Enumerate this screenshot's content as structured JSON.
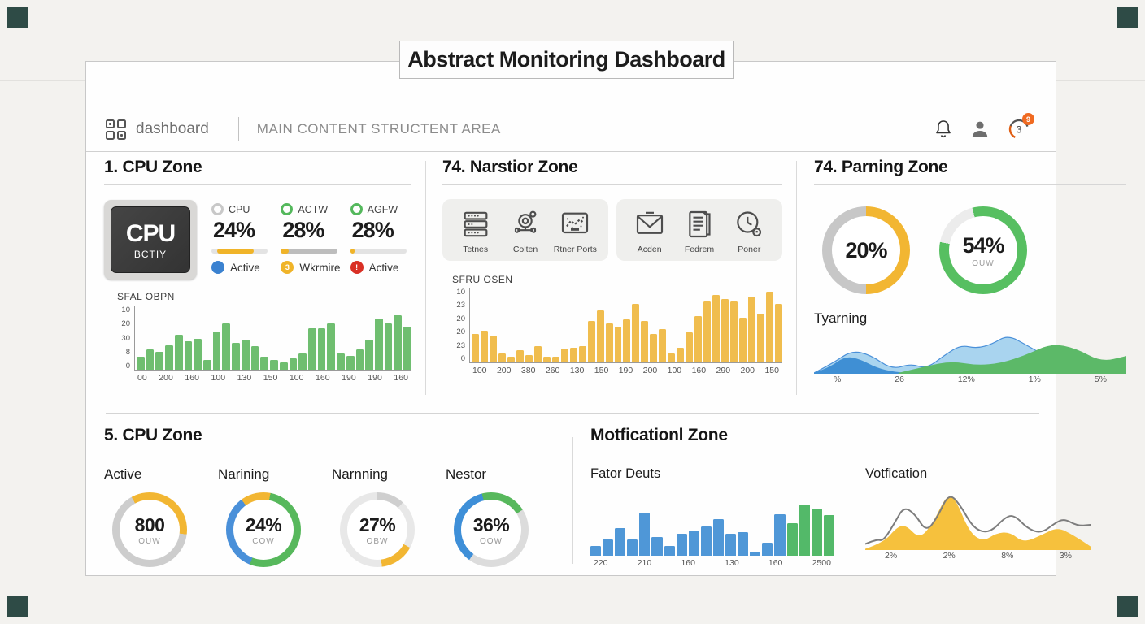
{
  "page": {
    "background": "#f3f2ef",
    "corner_color": "#2e4b46",
    "accent_yellow": "#f0b429",
    "accent_green": "#57b85c",
    "accent_blue": "#4a90d9",
    "accent_red": "#d93025",
    "badge_orange": "#f06a21"
  },
  "title": "Abstract Monitoring Dashboard",
  "header": {
    "brand": "dashboard",
    "subtitle": "MAIN CONTENT STRUCTENT AREA",
    "avatar_value": "3",
    "badge_value": "9"
  },
  "zones": {
    "cpu": {
      "heading": "1. CPU Zone",
      "chip": {
        "line1": "CPU",
        "line2": "BCTIY"
      },
      "stats": [
        {
          "ring_color": "#c8c8c8",
          "label": "CPU",
          "value": "24%",
          "bar": {
            "track": "#e3e3e3",
            "fill": "#f0b429",
            "start": 10,
            "end": 75
          },
          "dot_color": "#3b82d0",
          "dot_glyph": "",
          "status": "Active"
        },
        {
          "ring_color": "#54b85c",
          "label": "ACTW",
          "value": "28%",
          "bar": {
            "track": "#bdbdbd",
            "fill": "#f0b429",
            "start": 0,
            "end": 14
          },
          "dot_color": "#f0b429",
          "dot_glyph": "3",
          "status": "Wkrmire"
        },
        {
          "ring_color": "#54b85c",
          "label": "AGFW",
          "value": "28%",
          "bar": {
            "track": "#e3e3e3",
            "fill": "#f0b429",
            "start": 0,
            "end": 7
          },
          "dot_color": "#d93025",
          "dot_glyph": "!",
          "status": "Active"
        }
      ]
    },
    "narstior": {
      "heading": "74. Narstior Zone",
      "items": [
        {
          "icon": "server-stack-icon",
          "label": "Tetnes"
        },
        {
          "icon": "sensor-gauge-icon",
          "label": "Colten"
        },
        {
          "icon": "monitor-chart-icon",
          "label": "Rtner Ports"
        },
        {
          "icon": "envelope-icon",
          "label": "Acden"
        },
        {
          "icon": "document-icon",
          "label": "Fedrem"
        },
        {
          "icon": "clock-icon",
          "label": "Poner"
        }
      ]
    },
    "parning": {
      "heading": "74. Parning Zone",
      "donuts": [
        {
          "value": "20%",
          "sub": "",
          "segments": [
            [
              "#f2b632",
              0,
              50
            ],
            [
              "#c7c7c7",
              50,
              100
            ]
          ]
        },
        {
          "value": "54%",
          "sub": "OUW",
          "segments": [
            [
              "#57bf61",
              0,
              78
            ],
            [
              "#ececec",
              78,
              96
            ],
            [
              "#57bf61",
              96,
              100
            ]
          ]
        }
      ],
      "caption": "Tyarning"
    },
    "cpu2": {
      "heading": "5. CPU Zone",
      "gauges": [
        {
          "label": "Active",
          "value": "800",
          "sub": "OUW",
          "segments": [
            [
              "#f2b632",
              0,
              27
            ],
            [
              "#cdcdcd",
              27,
              92
            ],
            [
              "#f2b632",
              92,
              100
            ]
          ]
        },
        {
          "label": "Narining",
          "value": "24%",
          "sub": "COW",
          "segments": [
            [
              "#f2b632",
              0,
              3
            ],
            [
              "#57b85c",
              3,
              56
            ],
            [
              "#4a90d9",
              56,
              90
            ],
            [
              "#f2b632",
              90,
              100
            ]
          ]
        },
        {
          "label": "Narnning",
          "value": "27%",
          "sub": "OBW",
          "segments": [
            [
              "#cfcfcf",
              0,
              12
            ],
            [
              "#e8e8e8",
              12,
              33
            ],
            [
              "#f2b632",
              33,
              48
            ],
            [
              "#e8e8e8",
              48,
              100
            ]
          ]
        },
        {
          "label": "Nestor",
          "value": "36%",
          "sub": "OOW",
          "segments": [
            [
              "#57b85c",
              0,
              16
            ],
            [
              "#dcdcdc",
              16,
              60
            ],
            [
              "#3e8fd8",
              60,
              96
            ],
            [
              "#57b85c",
              96,
              100
            ]
          ]
        }
      ]
    },
    "motficationl": {
      "heading": "Motficationl Zone",
      "left_chart_title": "Fator Deuts",
      "right_chart_title": "Votfication"
    }
  },
  "chart_data": {
    "sfal": {
      "type": "bar",
      "title": "SFAL OBPN",
      "color": "#6fbe70",
      "axes": true,
      "ylim": [
        0,
        100
      ],
      "ylabels": [
        "10",
        "20",
        "30",
        "8",
        "0"
      ],
      "xlabels": [
        "00",
        "200",
        "160",
        "100",
        "130",
        "150",
        "100",
        "160",
        "190",
        "190",
        "160"
      ],
      "values": [
        20,
        32,
        28,
        38,
        55,
        44,
        48,
        15,
        60,
        72,
        42,
        47,
        37,
        20,
        15,
        12,
        18,
        25,
        64,
        65,
        72,
        25,
        22,
        32,
        47,
        80,
        72,
        85,
        67
      ]
    },
    "sfru": {
      "type": "bar",
      "title": "SFRU OSEN",
      "color": "#f0bd4e",
      "axes": true,
      "ylim": [
        0,
        100
      ],
      "ylabels": [
        "10",
        "23",
        "20",
        "20",
        "23",
        "0"
      ],
      "xlabels": [
        "100",
        "200",
        "380",
        "260",
        "130",
        "150",
        "190",
        "200",
        "100",
        "160",
        "290",
        "200",
        "150"
      ],
      "values": [
        38,
        42,
        36,
        12,
        8,
        16,
        10,
        22,
        8,
        8,
        18,
        20,
        22,
        55,
        70,
        52,
        48,
        58,
        78,
        55,
        38,
        45,
        12,
        20,
        40,
        62,
        82,
        90,
        85,
        82,
        60,
        88,
        65,
        95,
        78
      ]
    },
    "parning_area": {
      "type": "area",
      "height": 52,
      "xlabels": [
        "%",
        "26",
        "12%",
        "1%",
        "5%"
      ],
      "series": [
        {
          "name": "light-blue",
          "fill": "#a9d4ef",
          "stroke": "#4a90d9",
          "points": [
            [
              0,
              0.02
            ],
            [
              0.06,
              0.25
            ],
            [
              0.12,
              0.55
            ],
            [
              0.18,
              0.45
            ],
            [
              0.25,
              0.1
            ],
            [
              0.31,
              0.24
            ],
            [
              0.36,
              0.12
            ],
            [
              0.42,
              0.45
            ],
            [
              0.47,
              0.68
            ],
            [
              0.52,
              0.6
            ],
            [
              0.57,
              0.7
            ],
            [
              0.62,
              0.92
            ],
            [
              0.68,
              0.68
            ],
            [
              0.75,
              0.38
            ],
            [
              0.85,
              0.26
            ],
            [
              1,
              0.22
            ]
          ]
        },
        {
          "name": "dark-blue",
          "fill": "#3f8fd4",
          "points": [
            [
              0,
              0.02
            ],
            [
              0.05,
              0.15
            ],
            [
              0.1,
              0.42
            ],
            [
              0.15,
              0.34
            ],
            [
              0.2,
              0.14
            ],
            [
              0.26,
              0.04
            ],
            [
              0.32,
              0.02
            ]
          ]
        },
        {
          "name": "green",
          "fill": "#5cb968",
          "points": [
            [
              0.27,
              0.02
            ],
            [
              0.36,
              0.18
            ],
            [
              0.44,
              0.3
            ],
            [
              0.52,
              0.2
            ],
            [
              0.6,
              0.25
            ],
            [
              0.68,
              0.45
            ],
            [
              0.76,
              0.72
            ],
            [
              0.84,
              0.6
            ],
            [
              0.92,
              0.28
            ],
            [
              1,
              0.42
            ]
          ]
        }
      ]
    },
    "fator": {
      "type": "bar",
      "title": "Fator Deuts",
      "color": "#4f97d7",
      "axes": false,
      "ylim": [
        0,
        100
      ],
      "xlabels": [
        "220",
        "210",
        "160",
        "130",
        "160",
        "2500"
      ],
      "values": [
        15,
        25,
        42,
        25,
        65,
        28,
        15,
        33,
        38,
        45,
        55,
        33,
        36,
        6,
        20,
        63,
        50,
        78,
        72,
        62
      ],
      "colors_note": "last four bars green",
      "colors": [
        null,
        null,
        null,
        null,
        null,
        null,
        null,
        null,
        null,
        null,
        null,
        null,
        null,
        null,
        null,
        null,
        "#53b969",
        "#53b969",
        "#53b969",
        "#53b969"
      ]
    },
    "votfication": {
      "type": "area",
      "height": 74,
      "xlabels": [
        "2%",
        "2%",
        "8%",
        "3%"
      ],
      "series": [
        {
          "name": "yellow-area",
          "fill": "#f6c13d",
          "points": [
            [
              0,
              0.02
            ],
            [
              0.08,
              0.12
            ],
            [
              0.14,
              0.38
            ],
            [
              0.18,
              0.42
            ],
            [
              0.24,
              0.18
            ],
            [
              0.3,
              0.45
            ],
            [
              0.36,
              0.92
            ],
            [
              0.4,
              0.85
            ],
            [
              0.46,
              0.3
            ],
            [
              0.52,
              0.14
            ],
            [
              0.58,
              0.28
            ],
            [
              0.64,
              0.3
            ],
            [
              0.7,
              0.12
            ],
            [
              0.78,
              0.25
            ],
            [
              0.85,
              0.38
            ],
            [
              0.92,
              0.25
            ],
            [
              1,
              0.05
            ]
          ]
        },
        {
          "name": "gray-line",
          "fill": "none",
          "stroke": "#7d7d7d",
          "sw": 2,
          "points": [
            [
              0,
              0.1
            ],
            [
              0.05,
              0.18
            ],
            [
              0.08,
              0.15
            ],
            [
              0.13,
              0.45
            ],
            [
              0.17,
              0.72
            ],
            [
              0.22,
              0.6
            ],
            [
              0.27,
              0.3
            ],
            [
              0.32,
              0.55
            ],
            [
              0.37,
              0.95
            ],
            [
              0.42,
              0.75
            ],
            [
              0.48,
              0.35
            ],
            [
              0.55,
              0.28
            ],
            [
              0.62,
              0.55
            ],
            [
              0.66,
              0.58
            ],
            [
              0.72,
              0.35
            ],
            [
              0.78,
              0.28
            ],
            [
              0.84,
              0.45
            ],
            [
              0.88,
              0.52
            ],
            [
              0.94,
              0.4
            ],
            [
              1,
              0.42
            ]
          ]
        }
      ]
    }
  }
}
